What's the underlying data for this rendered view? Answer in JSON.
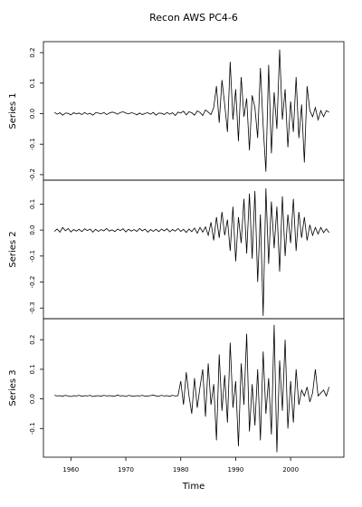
{
  "chart_data": {
    "type": "line",
    "title": "Recon AWS PC4-6",
    "xlabel": "Time",
    "color": "#000000",
    "xlim": [
      1955,
      2009.7
    ],
    "xticks": [
      1960,
      1970,
      1980,
      1990,
      2000
    ],
    "x": [
      1957,
      1957.5,
      1958,
      1958.5,
      1959,
      1959.5,
      1960,
      1960.5,
      1961,
      1961.5,
      1962,
      1962.5,
      1963,
      1963.5,
      1964,
      1964.5,
      1965,
      1965.5,
      1966,
      1966.5,
      1967,
      1967.5,
      1968,
      1968.5,
      1969,
      1969.5,
      1970,
      1970.5,
      1971,
      1971.5,
      1972,
      1972.5,
      1973,
      1973.5,
      1974,
      1974.5,
      1975,
      1975.5,
      1976,
      1976.5,
      1977,
      1977.5,
      1978,
      1978.5,
      1979,
      1979.5,
      1980,
      1980.5,
      1981,
      1981.5,
      1982,
      1982.5,
      1983,
      1983.5,
      1984,
      1984.5,
      1985,
      1985.5,
      1986,
      1986.5,
      1987,
      1987.5,
      1988,
      1988.5,
      1989,
      1989.5,
      1990,
      1990.5,
      1991,
      1991.5,
      1992,
      1992.5,
      1993,
      1993.5,
      1994,
      1994.5,
      1995,
      1995.5,
      1996,
      1996.5,
      1997,
      1997.5,
      1998,
      1998.5,
      1999,
      1999.5,
      2000,
      2000.5,
      2001,
      2001.5,
      2002,
      2002.5,
      2003,
      2003.5,
      2004,
      2004.5,
      2005,
      2005.5,
      2006,
      2006.5,
      2007
    ],
    "series": [
      {
        "name": "Series 1",
        "ylim": [
          -0.218,
          0.236
        ],
        "yticks": [
          -0.2,
          -0.1,
          {
            "value": 0,
            "label": "0.0"
          },
          0.1,
          0.2
        ],
        "values": [
          0.004,
          -0.002,
          0.003,
          -0.005,
          0.002,
          0.001,
          -0.004,
          0.003,
          -0.001,
          0.002,
          -0.003,
          0.004,
          -0.002,
          0.001,
          -0.005,
          0.003,
          0.002,
          -0.001,
          0.004,
          -0.003,
          0.002,
          0.005,
          0.003,
          -0.002,
          0.004,
          0.006,
          0.002,
          -0.001,
          0.003,
          0.001,
          -0.004,
          0.002,
          -0.003,
          0.001,
          0.003,
          -0.002,
          0.004,
          -0.005,
          0.002,
          0.001,
          -0.003,
          0.004,
          -0.002,
          0.003,
          -0.006,
          0.005,
          0.002,
          0.008,
          -0.004,
          0.006,
          0.003,
          -0.005,
          0.009,
          0.004,
          -0.006,
          0.012,
          0.005,
          -0.003,
          0.02,
          0.09,
          -0.03,
          0.11,
          0.03,
          -0.06,
          0.17,
          -0.02,
          0.08,
          -0.09,
          0.12,
          -0.01,
          0.05,
          -0.12,
          0.06,
          0.02,
          -0.08,
          0.15,
          -0.04,
          -0.19,
          0.16,
          -0.13,
          0.07,
          -0.05,
          0.21,
          -0.02,
          0.08,
          -0.11,
          0.04,
          -0.06,
          0.12,
          -0.08,
          0.03,
          -0.16,
          0.09,
          0.01,
          -0.01,
          0.02,
          -0.02,
          0.01,
          -0.01,
          0.01,
          0.005
        ]
      },
      {
        "name": "Series 2",
        "ylim": [
          -0.341,
          0.192
        ],
        "yticks": [
          -0.3,
          -0.2,
          -0.1,
          {
            "value": 0,
            "label": "0.0"
          },
          0.1
        ],
        "values": [
          -0.005,
          0.004,
          -0.008,
          0.01,
          -0.003,
          0.006,
          -0.007,
          0.002,
          -0.004,
          0.003,
          -0.006,
          0.005,
          -0.002,
          0.004,
          -0.008,
          0.003,
          -0.005,
          0.002,
          -0.003,
          0.006,
          -0.004,
          0.001,
          -0.006,
          0.004,
          -0.002,
          0.005,
          -0.007,
          0.003,
          -0.004,
          0.002,
          -0.005,
          0.006,
          -0.003,
          0.004,
          -0.008,
          0.002,
          -0.005,
          0.003,
          -0.006,
          0.004,
          -0.003,
          0.005,
          -0.007,
          0.002,
          -0.004,
          0.006,
          -0.005,
          0.003,
          -0.009,
          0.004,
          -0.006,
          0.008,
          -0.012,
          0.01,
          -0.008,
          0.012,
          -0.02,
          0.03,
          -0.04,
          0.05,
          -0.03,
          0.07,
          -0.02,
          0.04,
          -0.08,
          0.09,
          -0.12,
          0.05,
          -0.05,
          0.12,
          -0.09,
          0.14,
          -0.11,
          0.15,
          -0.2,
          0.06,
          -0.33,
          0.16,
          -0.13,
          0.11,
          -0.07,
          0.09,
          -0.16,
          0.13,
          -0.1,
          0.06,
          -0.05,
          0.12,
          -0.08,
          0.07,
          -0.03,
          0.05,
          -0.04,
          0.02,
          -0.02,
          0.01,
          -0.015,
          0.01,
          -0.01,
          0.005,
          -0.01
        ]
      },
      {
        "name": "Series 3",
        "ylim": [
          -0.197,
          0.271
        ],
        "yticks": [
          -0.1,
          {
            "value": 0,
            "label": "0.0"
          },
          0.1,
          0.2
        ],
        "values": [
          0.012,
          0.01,
          0.011,
          0.009,
          0.012,
          0.01,
          0.008,
          0.011,
          0.01,
          0.012,
          0.009,
          0.011,
          0.01,
          0.012,
          0.008,
          0.01,
          0.011,
          0.009,
          0.012,
          0.01,
          0.011,
          0.01,
          0.009,
          0.013,
          0.01,
          0.011,
          0.008,
          0.012,
          0.01,
          0.009,
          0.011,
          0.01,
          0.012,
          0.009,
          0.01,
          0.011,
          0.013,
          0.01,
          0.009,
          0.012,
          0.01,
          0.011,
          0.009,
          0.012,
          0.01,
          0.011,
          0.06,
          -0.02,
          0.09,
          0.01,
          -0.05,
          0.07,
          -0.03,
          0.04,
          0.1,
          -0.06,
          0.12,
          -0.02,
          0.05,
          -0.14,
          0.15,
          -0.04,
          0.08,
          -0.08,
          0.19,
          -0.03,
          0.06,
          -0.16,
          0.12,
          -0.02,
          0.22,
          -0.11,
          0.05,
          -0.09,
          0.1,
          -0.14,
          0.16,
          -0.05,
          0.07,
          -0.12,
          0.25,
          -0.18,
          0.13,
          -0.04,
          0.2,
          -0.1,
          0.06,
          -0.08,
          0.1,
          -0.02,
          0.03,
          0.01,
          0.04,
          -0.01,
          0.02,
          0.1,
          0.01,
          0.02,
          0.03,
          0.01,
          0.04
        ]
      }
    ]
  }
}
